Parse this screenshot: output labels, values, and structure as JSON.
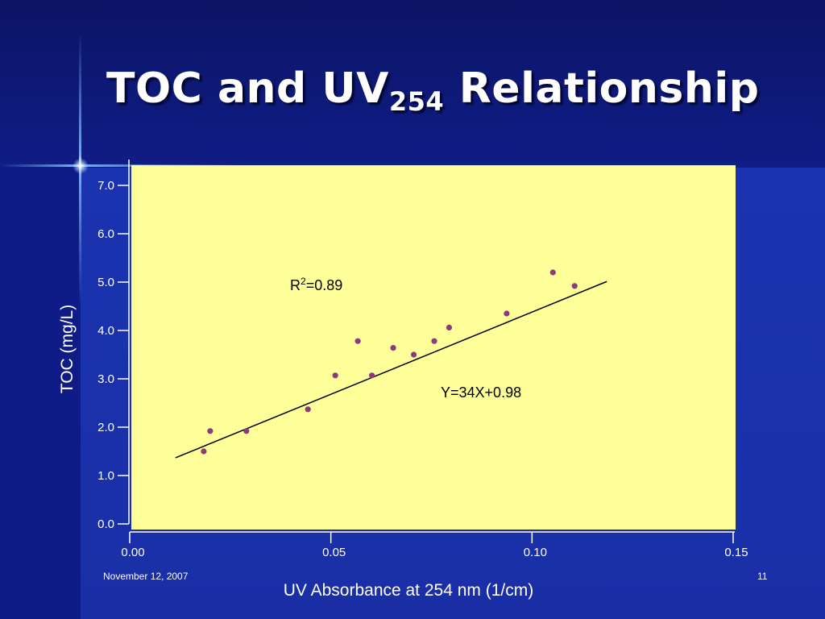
{
  "slide": {
    "title_main": "TOC and UV",
    "title_sub": "254",
    "title_end": " Relationship",
    "footer_date": "November 12, 2007",
    "page_number": "11"
  },
  "colors": {
    "background": "#1a2fa3",
    "plot_area": "#ffff99",
    "marker": "#8b3a7a",
    "trendline": "#000000",
    "text": "#ffffff"
  },
  "chart_data": {
    "type": "scatter",
    "title": "",
    "xlabel": "UV Absorbance at 254 nm (1/cm)",
    "ylabel": "TOC (mg/L)",
    "xlim": [
      0,
      0.15
    ],
    "ylim": [
      0,
      7.5
    ],
    "x_ticks": [
      0,
      0.05,
      0.1,
      0.15
    ],
    "x_tick_labels": [
      "0.00",
      "0.05",
      "0.10",
      "0.15"
    ],
    "y_ticks": [
      0,
      1,
      2,
      3,
      4,
      5,
      6,
      7
    ],
    "y_tick_labels": [
      "0.0",
      "1.0",
      "2.0",
      "3.0",
      "4.0",
      "5.0",
      "6.0",
      "7.0"
    ],
    "grid": false,
    "series": [
      {
        "values": [
          {
            "x": 0.0184,
            "y": 1.5
          },
          {
            "x": 0.02,
            "y": 1.92
          },
          {
            "x": 0.029,
            "y": 1.92
          },
          {
            "x": 0.0443,
            "y": 2.37
          },
          {
            "x": 0.0511,
            "y": 3.07
          },
          {
            "x": 0.0567,
            "y": 3.78
          },
          {
            "x": 0.0602,
            "y": 3.07
          },
          {
            "x": 0.0655,
            "y": 3.64
          },
          {
            "x": 0.0706,
            "y": 3.5
          },
          {
            "x": 0.0757,
            "y": 3.78
          },
          {
            "x": 0.0794,
            "y": 4.06
          },
          {
            "x": 0.0937,
            "y": 4.35
          },
          {
            "x": 0.1052,
            "y": 5.2
          },
          {
            "x": 0.1106,
            "y": 4.92
          }
        ]
      }
    ],
    "trendline": {
      "slope": 34,
      "intercept": 0.98,
      "x_range": [
        0.0114,
        0.1186
      ]
    },
    "annotations": [
      {
        "name": "r-squared",
        "prefix": "R",
        "sup": "2",
        "suffix": "=0.89"
      },
      {
        "name": "equation",
        "text": "Y=34X+0.98"
      }
    ]
  }
}
